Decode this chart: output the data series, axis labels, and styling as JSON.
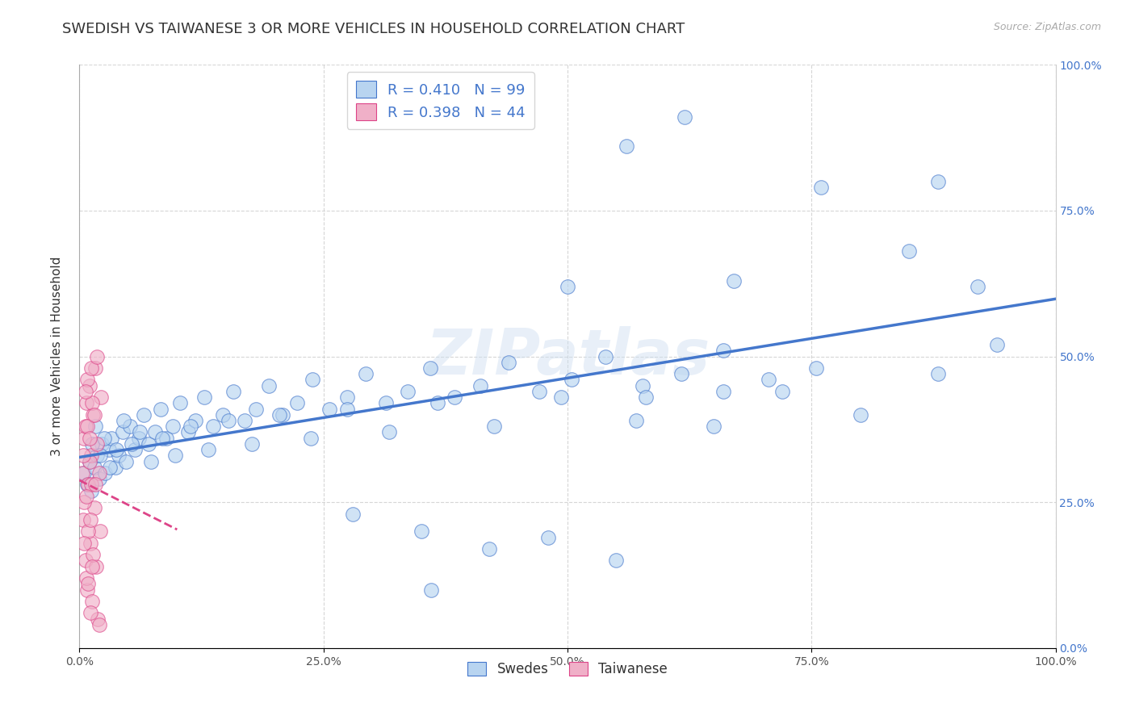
{
  "title": "SWEDISH VS TAIWANESE 3 OR MORE VEHICLES IN HOUSEHOLD CORRELATION CHART",
  "source": "Source: ZipAtlas.com",
  "ylabel": "3 or more Vehicles in Household",
  "watermark": "ZIPatlas",
  "legend_labels": [
    "Swedes",
    "Taiwanese"
  ],
  "blue_R": "0.410",
  "blue_N": "99",
  "pink_R": "0.398",
  "pink_N": "44",
  "blue_color": "#b8d4f0",
  "pink_color": "#f0b0c8",
  "blue_line_color": "#4477cc",
  "pink_line_color": "#dd4488",
  "blue_scatter": [
    [
      0.5,
      30.0
    ],
    [
      0.8,
      28.0
    ],
    [
      1.0,
      32.0
    ],
    [
      1.2,
      27.0
    ],
    [
      1.5,
      31.0
    ],
    [
      1.8,
      33.0
    ],
    [
      2.0,
      29.0
    ],
    [
      2.3,
      35.0
    ],
    [
      2.6,
      30.0
    ],
    [
      3.0,
      34.0
    ],
    [
      3.3,
      36.0
    ],
    [
      3.7,
      31.0
    ],
    [
      4.0,
      33.0
    ],
    [
      4.4,
      37.0
    ],
    [
      4.8,
      32.0
    ],
    [
      5.2,
      38.0
    ],
    [
      5.7,
      34.0
    ],
    [
      6.1,
      36.0
    ],
    [
      6.6,
      40.0
    ],
    [
      7.1,
      35.0
    ],
    [
      7.7,
      37.0
    ],
    [
      8.3,
      41.0
    ],
    [
      8.9,
      36.0
    ],
    [
      9.6,
      38.0
    ],
    [
      10.3,
      42.0
    ],
    [
      11.1,
      37.0
    ],
    [
      11.9,
      39.0
    ],
    [
      12.8,
      43.0
    ],
    [
      13.7,
      38.0
    ],
    [
      14.7,
      40.0
    ],
    [
      15.8,
      44.0
    ],
    [
      16.9,
      39.0
    ],
    [
      18.1,
      41.0
    ],
    [
      19.4,
      45.0
    ],
    [
      20.8,
      40.0
    ],
    [
      22.3,
      42.0
    ],
    [
      23.9,
      46.0
    ],
    [
      25.6,
      41.0
    ],
    [
      27.4,
      43.0
    ],
    [
      29.3,
      47.0
    ],
    [
      31.4,
      42.0
    ],
    [
      33.6,
      44.0
    ],
    [
      35.9,
      48.0
    ],
    [
      38.4,
      43.0
    ],
    [
      41.1,
      45.0
    ],
    [
      44.0,
      49.0
    ],
    [
      47.1,
      44.0
    ],
    [
      50.4,
      46.0
    ],
    [
      53.9,
      50.0
    ],
    [
      57.7,
      45.0
    ],
    [
      61.7,
      47.0
    ],
    [
      66.0,
      51.0
    ],
    [
      70.6,
      46.0
    ],
    [
      75.5,
      48.0
    ],
    [
      1.3,
      35.0
    ],
    [
      1.6,
      38.0
    ],
    [
      2.1,
      33.0
    ],
    [
      2.5,
      36.0
    ],
    [
      3.1,
      31.0
    ],
    [
      3.8,
      34.0
    ],
    [
      4.5,
      39.0
    ],
    [
      5.3,
      35.0
    ],
    [
      6.2,
      37.0
    ],
    [
      7.3,
      32.0
    ],
    [
      8.5,
      36.0
    ],
    [
      9.8,
      33.0
    ],
    [
      11.4,
      38.0
    ],
    [
      13.2,
      34.0
    ],
    [
      15.3,
      39.0
    ],
    [
      17.7,
      35.0
    ],
    [
      20.5,
      40.0
    ],
    [
      23.7,
      36.0
    ],
    [
      27.4,
      41.0
    ],
    [
      31.7,
      37.0
    ],
    [
      36.7,
      42.0
    ],
    [
      42.5,
      38.0
    ],
    [
      49.3,
      43.0
    ],
    [
      57.0,
      39.0
    ],
    [
      66.0,
      44.0
    ],
    [
      56.0,
      86.0
    ],
    [
      62.0,
      91.0
    ],
    [
      76.0,
      79.0
    ],
    [
      88.0,
      80.0
    ],
    [
      50.0,
      62.0
    ],
    [
      67.0,
      63.0
    ],
    [
      35.0,
      20.0
    ],
    [
      42.0,
      17.0
    ],
    [
      28.0,
      23.0
    ],
    [
      48.0,
      19.0
    ],
    [
      55.0,
      15.0
    ],
    [
      36.0,
      10.0
    ],
    [
      58.0,
      43.0
    ],
    [
      65.0,
      38.0
    ],
    [
      72.0,
      44.0
    ],
    [
      80.0,
      40.0
    ],
    [
      88.0,
      47.0
    ],
    [
      94.0,
      52.0
    ],
    [
      92.0,
      62.0
    ],
    [
      85.0,
      68.0
    ]
  ],
  "pink_scatter": [
    [
      0.3,
      30.0
    ],
    [
      0.4,
      22.0
    ],
    [
      0.5,
      36.0
    ],
    [
      0.6,
      15.0
    ],
    [
      0.7,
      42.0
    ],
    [
      0.8,
      10.0
    ],
    [
      0.9,
      28.0
    ],
    [
      1.0,
      45.0
    ],
    [
      1.1,
      18.0
    ],
    [
      1.2,
      33.0
    ],
    [
      1.3,
      8.0
    ],
    [
      1.4,
      40.0
    ],
    [
      1.5,
      24.0
    ],
    [
      1.6,
      48.0
    ],
    [
      1.7,
      14.0
    ],
    [
      1.8,
      35.0
    ],
    [
      1.9,
      5.0
    ],
    [
      2.0,
      30.0
    ],
    [
      2.1,
      20.0
    ],
    [
      2.2,
      43.0
    ],
    [
      0.5,
      25.0
    ],
    [
      0.6,
      38.0
    ],
    [
      0.7,
      12.0
    ],
    [
      0.8,
      46.0
    ],
    [
      0.9,
      20.0
    ],
    [
      1.0,
      32.0
    ],
    [
      1.1,
      6.0
    ],
    [
      1.2,
      28.0
    ],
    [
      1.3,
      42.0
    ],
    [
      1.4,
      16.0
    ],
    [
      0.4,
      33.0
    ],
    [
      0.5,
      18.0
    ],
    [
      0.6,
      44.0
    ],
    [
      0.7,
      26.0
    ],
    [
      0.8,
      38.0
    ],
    [
      0.9,
      11.0
    ],
    [
      1.0,
      36.0
    ],
    [
      1.1,
      22.0
    ],
    [
      1.2,
      48.0
    ],
    [
      1.3,
      14.0
    ],
    [
      1.5,
      40.0
    ],
    [
      1.6,
      28.0
    ],
    [
      1.8,
      50.0
    ],
    [
      2.0,
      4.0
    ]
  ],
  "xlim": [
    0,
    100
  ],
  "ylim": [
    0,
    100
  ],
  "xticks": [
    0,
    25,
    50,
    75,
    100
  ],
  "yticks": [
    0,
    25,
    50,
    75,
    100
  ],
  "xticklabels": [
    "0.0%",
    "25.0%",
    "50.0%",
    "75.0%",
    "100.0%"
  ],
  "yticklabels_right": [
    "0.0%",
    "25.0%",
    "50.0%",
    "75.0%",
    "100.0%"
  ],
  "grid_color": "#cccccc",
  "background_color": "#ffffff",
  "title_fontsize": 13,
  "axis_fontsize": 11,
  "tick_fontsize": 10
}
